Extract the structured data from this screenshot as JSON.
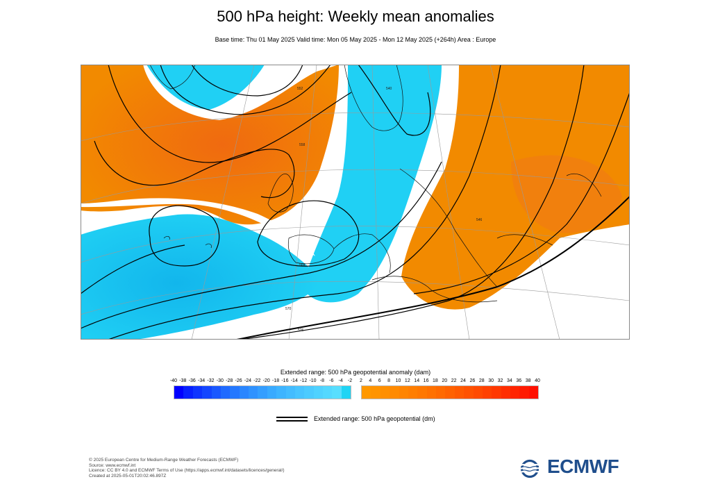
{
  "title": "500 hPa height: Weekly mean anomalies",
  "subtitle": "Base time: Thu 01 May 2025 Valid time: Mon 05 May 2025 - Mon 12 May 2025 (+264h) Area : Europe",
  "map": {
    "area": "Europe",
    "contour_labels": [
      "540",
      "546",
      "552",
      "558",
      "564",
      "570",
      "576"
    ],
    "colors": {
      "negative_anomaly": "#1ec8f0",
      "positive_anomaly": "#f28a00",
      "strong_positive": "#f06a10",
      "contour": "#000000"
    }
  },
  "legend": {
    "title": "Extended range: 500 hPa geopotential anomaly (dam)",
    "ticks": [
      "-40",
      "-38",
      "-36",
      "-34",
      "-32",
      "-30",
      "-28",
      "-26",
      "-24",
      "-22",
      "-20",
      "-18",
      "-16",
      "-14",
      "-12",
      "-10",
      "-8",
      "-6",
      "-4",
      "-2",
      "2",
      "4",
      "6",
      "8",
      "10",
      "12",
      "14",
      "16",
      "18",
      "20",
      "22",
      "24",
      "26",
      "28",
      "30",
      "32",
      "34",
      "36",
      "38",
      "40"
    ],
    "negative_colors": [
      "#0000ff",
      "#0720ff",
      "#0e34ff",
      "#1446ff",
      "#1a58ff",
      "#1f6aff",
      "#2478ff",
      "#2a86ff",
      "#2f92ff",
      "#349eff",
      "#39aaff",
      "#3eb4ff",
      "#43bcff",
      "#48c4ff",
      "#4ccbff",
      "#50d2ff",
      "#54d8ff",
      "#58defe",
      "#20d4f4"
    ],
    "positive_colors": [
      "#ff9800",
      "#ff9400",
      "#ff8f00",
      "#ff8a00",
      "#ff8400",
      "#ff7e00",
      "#ff7800",
      "#ff7100",
      "#ff6a00",
      "#ff6200",
      "#ff5a00",
      "#ff5200",
      "#ff4a00",
      "#ff4100",
      "#ff3800",
      "#ff2e00",
      "#ff2400",
      "#ff1a00",
      "#ff1000"
    ],
    "line_label": "Extended range: 500 hPa geopotential (dm)"
  },
  "footer": {
    "lines": [
      "© 2025 European Centre for Medium-Range Weather Forecasts (ECMWF)",
      "Source: www.ecmwf.int",
      "Licence: CC BY 4.0 and ECMWF Terms of Use (https://apps.ecmwf.int/datasets/licences/general/)",
      "Created at 2025-05-01T20:02:46.897Z"
    ]
  },
  "logo": {
    "text": "ECMWF",
    "color": "#1f4e8c"
  }
}
